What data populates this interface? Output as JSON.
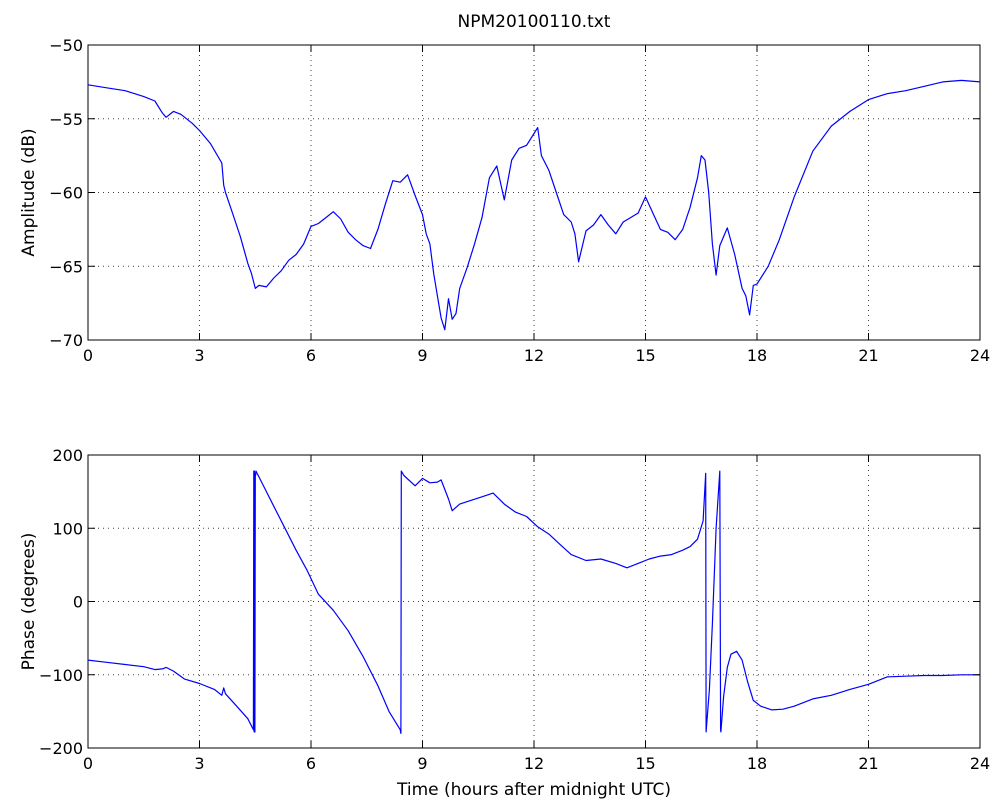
{
  "figure": {
    "title": "NPM20100110.txt"
  },
  "colors": {
    "trace": "#0000ff",
    "axes": "#000000",
    "background": "#ffffff"
  },
  "chart_data": [
    {
      "type": "line",
      "title": "NPM20100110.txt",
      "xlabel": "",
      "ylabel": "Amplitude (dB)",
      "xlim": [
        0,
        24
      ],
      "ylim": [
        -70,
        -50
      ],
      "xticks": [
        0,
        3,
        6,
        9,
        12,
        15,
        18,
        21,
        24
      ],
      "xtick_labels": [
        "0",
        "3",
        "6",
        "9",
        "12",
        "15",
        "18",
        "21",
        "24"
      ],
      "yticks": [
        -70,
        -65,
        -60,
        -55,
        -50
      ],
      "ytick_labels": [
        "−70",
        "−65",
        "−60",
        "−55",
        "−50"
      ],
      "grid": true,
      "series": [
        {
          "x": [
            0,
            0.5,
            1.0,
            1.5,
            1.8,
            2.0,
            2.1,
            2.3,
            2.5,
            2.8,
            3.0,
            3.3,
            3.6,
            3.65,
            3.7,
            3.9,
            4.1,
            4.3,
            4.4,
            4.5,
            4.6,
            4.8,
            5.0,
            5.2,
            5.4,
            5.6,
            5.8,
            6.0,
            6.2,
            6.4,
            6.6,
            6.8,
            7.0,
            7.2,
            7.4,
            7.6,
            7.8,
            8.0,
            8.2,
            8.4,
            8.6,
            8.8,
            9.0,
            9.1,
            9.2,
            9.3,
            9.4,
            9.5,
            9.6,
            9.7,
            9.8,
            9.9,
            10.0,
            10.2,
            10.4,
            10.6,
            10.8,
            11.0,
            11.2,
            11.4,
            11.6,
            11.8,
            12.0,
            12.1,
            12.2,
            12.4,
            12.6,
            12.8,
            13.0,
            13.1,
            13.2,
            13.4,
            13.6,
            13.8,
            14.0,
            14.2,
            14.4,
            14.6,
            14.8,
            15.0,
            15.2,
            15.4,
            15.6,
            15.8,
            16.0,
            16.2,
            16.4,
            16.5,
            16.6,
            16.7,
            16.8,
            16.9,
            17.0,
            17.2,
            17.4,
            17.6,
            17.7,
            17.8,
            17.9,
            18.0,
            18.3,
            18.6,
            19.0,
            19.5,
            20.0,
            20.5,
            21.0,
            21.5,
            22.0,
            22.5,
            23.0,
            23.5,
            24.0
          ],
          "y": [
            -52.7,
            -52.9,
            -53.1,
            -53.5,
            -53.8,
            -54.6,
            -54.9,
            -54.5,
            -54.7,
            -55.3,
            -55.8,
            -56.7,
            -58.0,
            -59.5,
            -60.0,
            -61.5,
            -63.0,
            -64.8,
            -65.5,
            -66.5,
            -66.3,
            -66.4,
            -65.8,
            -65.3,
            -64.6,
            -64.2,
            -63.5,
            -62.3,
            -62.1,
            -61.7,
            -61.3,
            -61.8,
            -62.7,
            -63.2,
            -63.6,
            -63.8,
            -62.5,
            -60.8,
            -59.2,
            -59.3,
            -58.8,
            -60.2,
            -61.5,
            -62.8,
            -63.5,
            -65.5,
            -67.0,
            -68.5,
            -69.3,
            -67.2,
            -68.6,
            -68.2,
            -66.5,
            -65.1,
            -63.5,
            -61.7,
            -59.0,
            -58.2,
            -60.5,
            -57.8,
            -57.0,
            -56.8,
            -56.0,
            -55.6,
            -57.5,
            -58.5,
            -60.0,
            -61.5,
            -62.0,
            -62.8,
            -64.7,
            -62.6,
            -62.2,
            -61.5,
            -62.2,
            -62.8,
            -62.0,
            -61.7,
            -61.4,
            -60.3,
            -61.4,
            -62.5,
            -62.7,
            -63.2,
            -62.5,
            -61.0,
            -59.0,
            -57.5,
            -57.8,
            -60.0,
            -63.5,
            -65.6,
            -63.6,
            -62.4,
            -64.2,
            -66.5,
            -67.0,
            -68.3,
            -66.3,
            -66.2,
            -65.0,
            -63.2,
            -60.3,
            -57.2,
            -55.5,
            -54.5,
            -53.7,
            -53.3,
            -53.1,
            -52.8,
            -52.5,
            -52.4,
            -52.5
          ]
        }
      ]
    },
    {
      "type": "line",
      "title": "",
      "xlabel": "Time (hours after midnight UTC)",
      "ylabel": "Phase (degrees)",
      "xlim": [
        0,
        24
      ],
      "ylim": [
        -200,
        200
      ],
      "xticks": [
        0,
        3,
        6,
        9,
        12,
        15,
        18,
        21,
        24
      ],
      "xtick_labels": [
        "0",
        "3",
        "6",
        "9",
        "12",
        "15",
        "18",
        "21",
        "24"
      ],
      "yticks": [
        -200,
        -100,
        0,
        100,
        200
      ],
      "ytick_labels": [
        "−200",
        "−100",
        "0",
        "100",
        "200"
      ],
      "grid": true,
      "series": [
        {
          "x": [
            0,
            0.5,
            1.0,
            1.5,
            1.8,
            2.0,
            2.1,
            2.3,
            2.6,
            3.0,
            3.4,
            3.6,
            3.65,
            3.7,
            4.0,
            4.3,
            4.45,
            4.46,
            4.47,
            4.48,
            4.49,
            4.5,
            4.51,
            4.52,
            4.6,
            4.8,
            5.0,
            5.3,
            5.6,
            5.9,
            6.2,
            6.6,
            7.0,
            7.4,
            7.8,
            8.1,
            8.4,
            8.42,
            8.43,
            8.5,
            8.8,
            9.0,
            9.2,
            9.4,
            9.5,
            9.7,
            9.8,
            10.0,
            10.3,
            10.6,
            10.9,
            11.2,
            11.5,
            11.8,
            12.1,
            12.4,
            12.7,
            13.0,
            13.4,
            13.8,
            14.2,
            14.5,
            14.8,
            15.1,
            15.4,
            15.7,
            16.0,
            16.2,
            16.4,
            16.55,
            16.62,
            16.63,
            16.72,
            16.8,
            16.9,
            17.0,
            17.02,
            17.03,
            17.1,
            17.2,
            17.3,
            17.45,
            17.6,
            17.75,
            17.9,
            18.1,
            18.4,
            18.7,
            19.0,
            19.5,
            20.0,
            20.5,
            21.0,
            21.5,
            22.0,
            22.5,
            23.0,
            23.5,
            24.0
          ],
          "y": [
            -80,
            -83,
            -86,
            -89,
            -93,
            -92,
            -90,
            -95,
            -106,
            -112,
            -120,
            -128,
            -118,
            -126,
            -143,
            -160,
            -175,
            178,
            -178,
            178,
            -178,
            175,
            172,
            178,
            170,
            150,
            130,
            100,
            70,
            42,
            10,
            -12,
            -40,
            -75,
            -115,
            -150,
            -175,
            -180,
            178,
            172,
            158,
            168,
            162,
            163,
            166,
            140,
            124,
            133,
            138,
            143,
            148,
            133,
            122,
            116,
            102,
            92,
            78,
            64,
            56,
            58,
            52,
            46,
            52,
            58,
            62,
            64,
            70,
            75,
            85,
            110,
            175,
            -178,
            -120,
            -30,
            100,
            178,
            -175,
            -178,
            -130,
            -90,
            -72,
            -68,
            -80,
            -110,
            -135,
            -143,
            -148,
            -147,
            -143,
            -133,
            -128,
            -120,
            -113,
            -103,
            -102,
            -101,
            -101,
            -100,
            -100
          ]
        }
      ]
    }
  ]
}
